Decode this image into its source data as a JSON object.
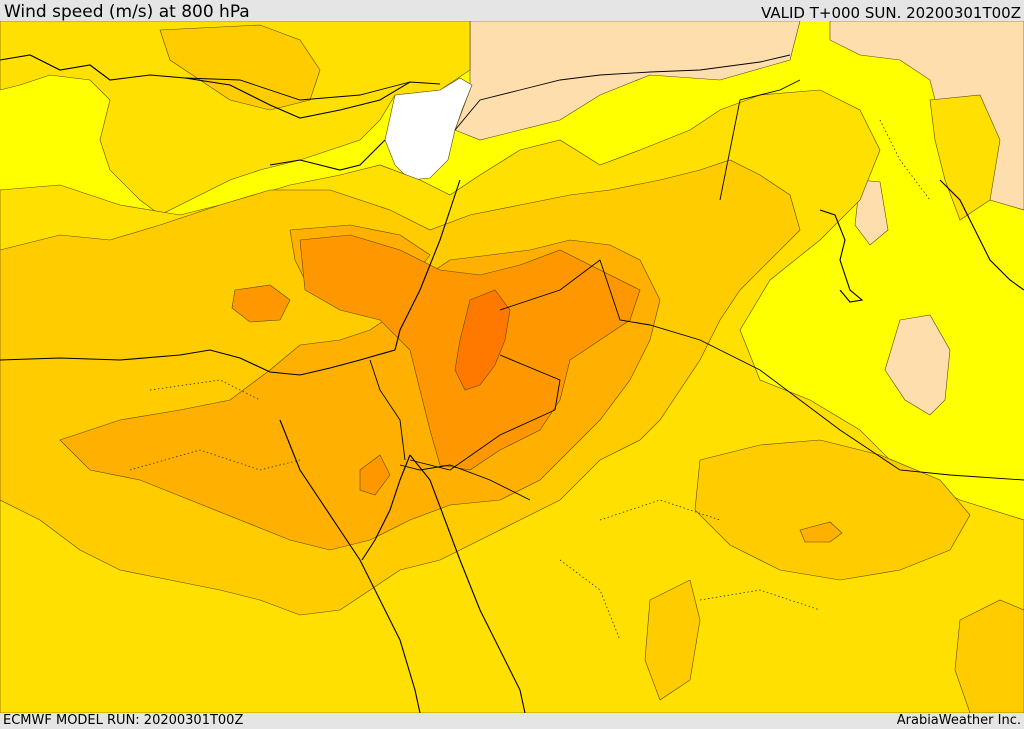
{
  "header": {
    "title": "Wind speed (m/s) at 800 hPa",
    "valid": "VALID T+000 SUN. 20200301T00Z"
  },
  "footer": {
    "model_run": "ECMWF MODEL RUN: 20200301T00Z",
    "credit": "ArabiaWeather Inc."
  },
  "map": {
    "field": "wind speed at 800 hPa",
    "palette": {
      "below_range": "#ffffff",
      "level_1": "#ffff00",
      "level_2": "#ffdead",
      "level_3": "#ffe000",
      "level_4": "#ffcc00",
      "level_5": "#ffb000",
      "level_6": "#ff9800",
      "level_7": "#ff7800"
    }
  }
}
